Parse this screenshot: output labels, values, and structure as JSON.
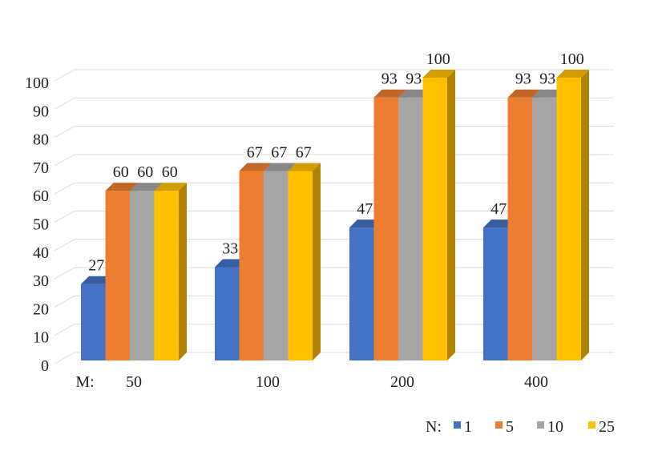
{
  "chart_data": {
    "type": "bar",
    "style": "3d-clustered-column",
    "xlabel": "M:",
    "categories": [
      "50",
      "100",
      "200",
      "400"
    ],
    "legend_title": "N:",
    "legend_position": "bottom-right",
    "ylim": [
      0,
      100
    ],
    "yticks": [
      "0",
      "10",
      "20",
      "30",
      "40",
      "50",
      "60",
      "70",
      "80",
      "90",
      "100"
    ],
    "grid": true,
    "data_labels": true,
    "series": [
      {
        "name": "1",
        "color": "#4472C4",
        "values": [
          27,
          33,
          47,
          47
        ]
      },
      {
        "name": "5",
        "color": "#ED7D31",
        "values": [
          60,
          67,
          93,
          93
        ]
      },
      {
        "name": "10",
        "color": "#A5A5A5",
        "values": [
          60,
          67,
          93,
          93
        ]
      },
      {
        "name": "25",
        "color": "#FFC000",
        "values": [
          60,
          67,
          100,
          100
        ]
      }
    ]
  }
}
